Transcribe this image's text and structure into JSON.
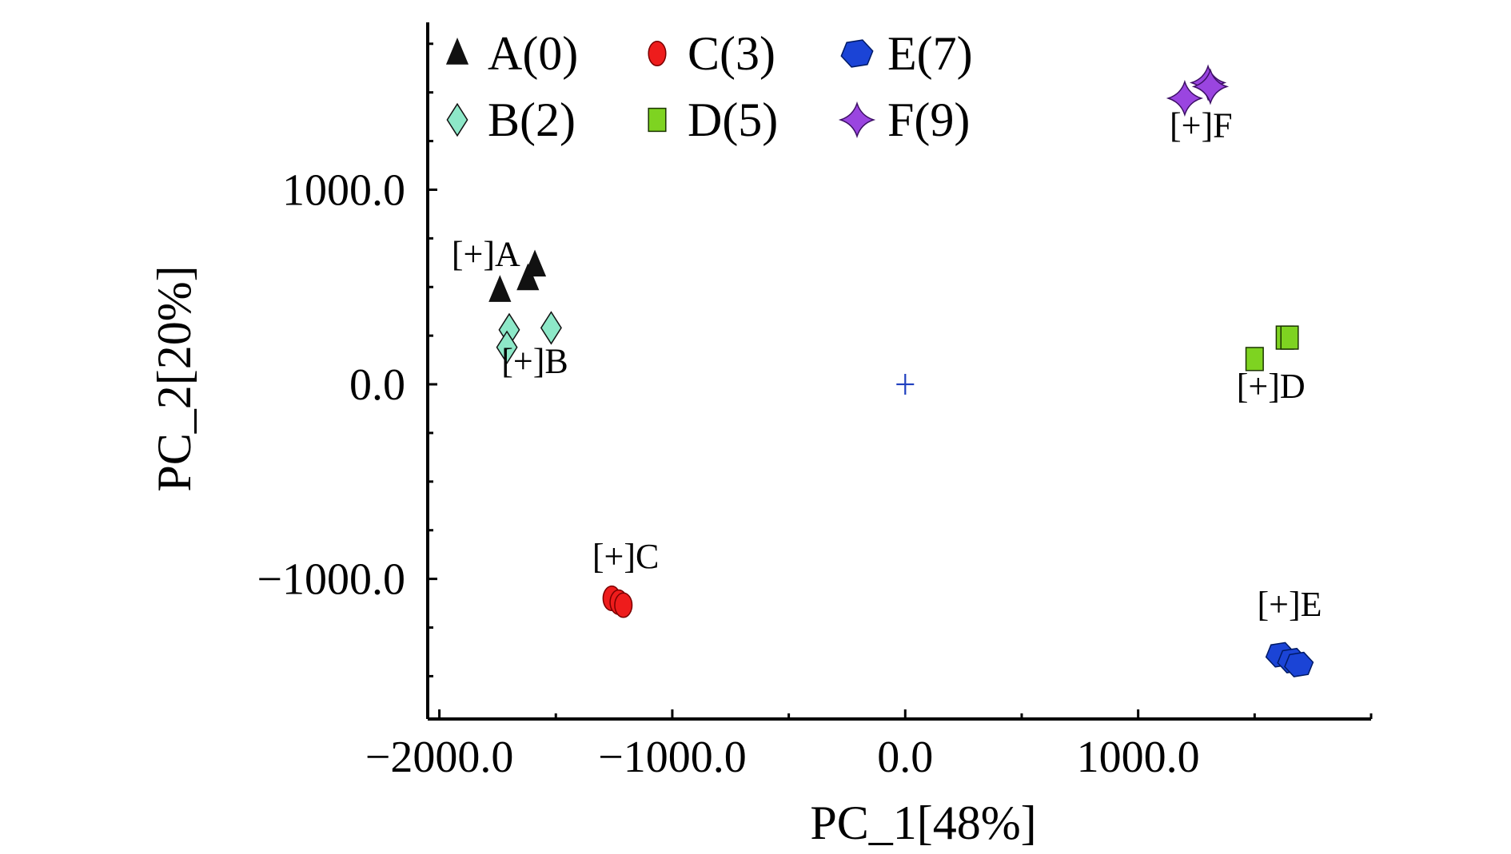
{
  "chart_data": {
    "type": "scatter",
    "title": "",
    "xlabel": "PC_1[48%]",
    "ylabel": "PC_2[20%]",
    "xlim": [
      -2050,
      2000
    ],
    "ylim": [
      -1720,
      1860
    ],
    "x_ticks": [
      -2000,
      -1000,
      0,
      1000
    ],
    "x_tick_labels": [
      "−2000.0",
      "−1000.0",
      "0.0",
      "1000.0"
    ],
    "y_ticks": [
      -1000,
      0,
      1000
    ],
    "y_tick_labels": [
      "−1000.0",
      "0.0",
      "1000.0"
    ],
    "x_minor_step": 500,
    "y_minor_step": 250,
    "grid": false,
    "legend_position": "top-left",
    "origin_marker": {
      "x": 0,
      "y": 0,
      "color": "#1f3fbf"
    },
    "series": [
      {
        "name": "A(0)",
        "marker": "triangle",
        "color": "#111111",
        "points": [
          {
            "x": -1740,
            "y": 480
          },
          {
            "x": -1620,
            "y": 540
          },
          {
            "x": -1590,
            "y": 610
          }
        ],
        "group_label": "[+]A",
        "label_x": -1800,
        "label_y": 610
      },
      {
        "name": "B(2)",
        "marker": "diamond",
        "color": "#8de8c8",
        "points": [
          {
            "x": -1700,
            "y": 280
          },
          {
            "x": -1710,
            "y": 190
          },
          {
            "x": -1520,
            "y": 290
          }
        ],
        "group_label": "[+]B",
        "label_x": -1590,
        "label_y": 60
      },
      {
        "name": "C(3)",
        "marker": "ellipse",
        "color": "#ee1c1c",
        "points": [
          {
            "x": -1260,
            "y": -1100
          },
          {
            "x": -1230,
            "y": -1120
          },
          {
            "x": -1210,
            "y": -1135
          }
        ],
        "group_label": "[+]C",
        "label_x": -1200,
        "label_y": -945
      },
      {
        "name": "D(5)",
        "marker": "square",
        "color": "#7ed321",
        "points": [
          {
            "x": 1500,
            "y": 130
          },
          {
            "x": 1630,
            "y": 240
          },
          {
            "x": 1650,
            "y": 240
          }
        ],
        "group_label": "[+]D",
        "label_x": 1570,
        "label_y": -70
      },
      {
        "name": "E(7)",
        "marker": "hexagon",
        "color": "#1b44d6",
        "points": [
          {
            "x": 1610,
            "y": -1390
          },
          {
            "x": 1660,
            "y": -1420
          },
          {
            "x": 1690,
            "y": -1440
          }
        ],
        "group_label": "[+]E",
        "label_x": 1650,
        "label_y": -1190
      },
      {
        "name": "F(9)",
        "marker": "star4",
        "color": "#9a45e0",
        "points": [
          {
            "x": 1200,
            "y": 1470
          },
          {
            "x": 1300,
            "y": 1550
          },
          {
            "x": 1310,
            "y": 1530
          }
        ],
        "group_label": "[+]F",
        "label_x": 1270,
        "label_y": 1270
      }
    ]
  }
}
